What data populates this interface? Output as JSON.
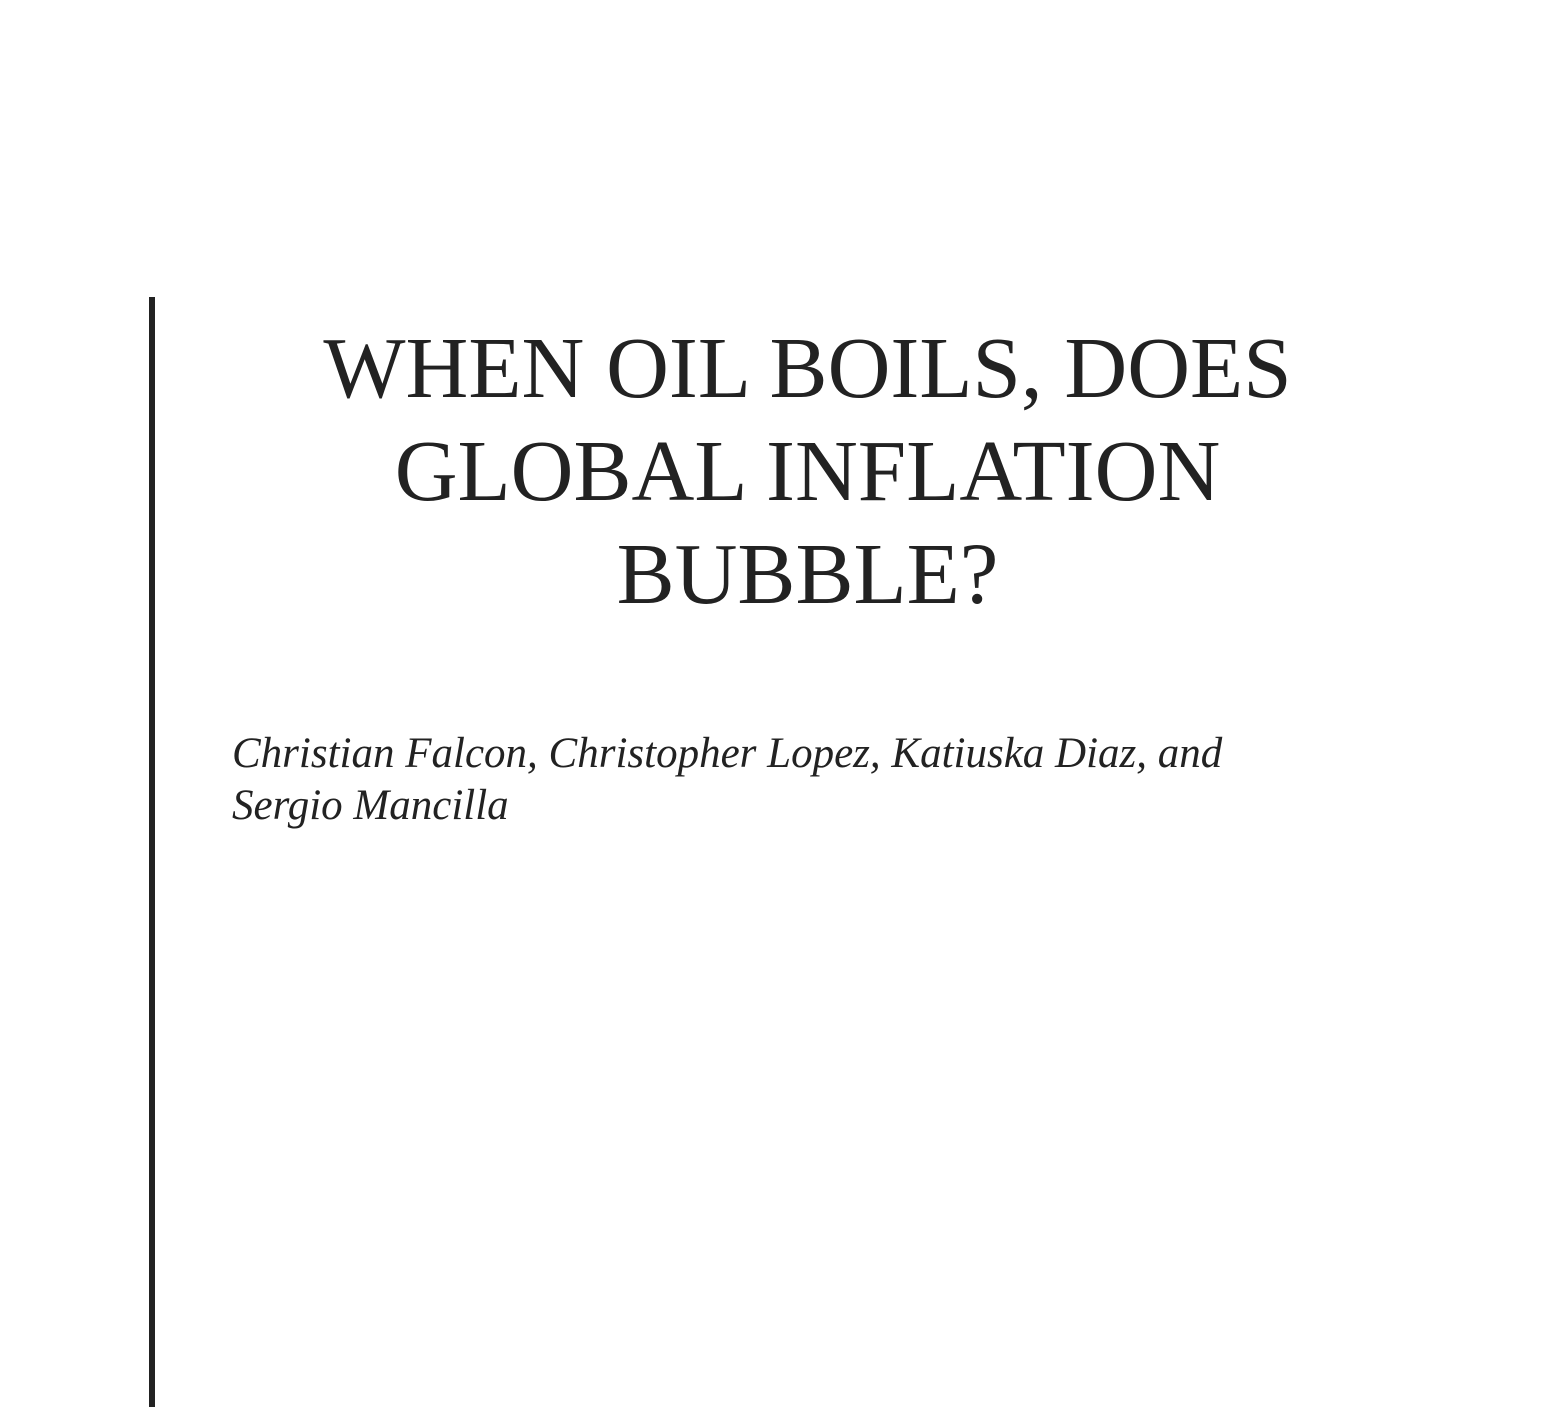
{
  "paper": {
    "title_lines": [
      "WHEN OIL BOILS, DOES",
      "GLOBAL INFLATION",
      "BUBBLE?"
    ],
    "author_lines": [
      "Christian Falcon, Christopher Lopez, Katiuska Diaz, and",
      "Sergio Mancilla"
    ]
  }
}
